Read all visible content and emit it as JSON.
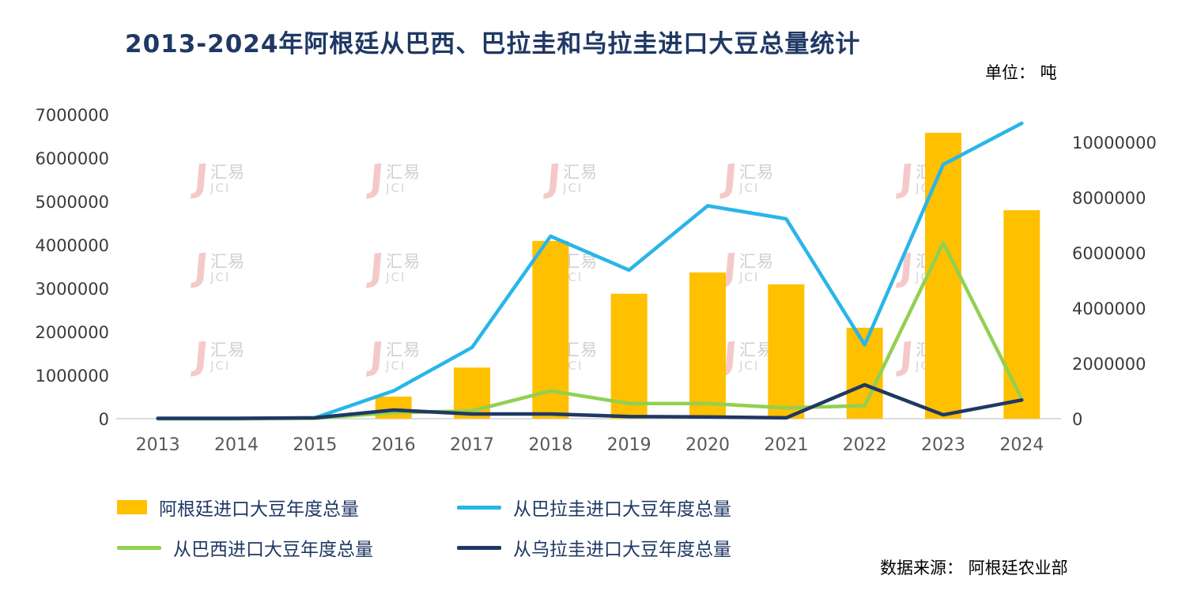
{
  "title": "2013-2024年阿根廷从巴西、巴拉圭和乌拉圭进口大豆总量统计",
  "unit_label": "单位： 吨",
  "source": "数据来源：  阿根廷农业部",
  "watermark": {
    "cn": "汇易",
    "en": "JCI"
  },
  "colors": {
    "title": "#1F3864",
    "bar": "#FFC000",
    "paraguay_line": "#2AB5E9",
    "brazil_line": "#92D050",
    "uruguay_line": "#1F3864",
    "baseline": "#D2D2D2",
    "left_axis_text": "#3A3A3A",
    "x_axis_text": "#595959"
  },
  "chart_data": {
    "type": "bar",
    "subtype": "bar+line combo, dual axis",
    "title": "2013-2024年阿根廷从巴西、巴拉圭和乌拉圭进口大豆总量统计",
    "xlabel": "",
    "ylabel": "吨",
    "grid": false,
    "legend_position": "bottom",
    "categories": [
      "2013",
      "2014",
      "2015",
      "2016",
      "2017",
      "2018",
      "2019",
      "2020",
      "2021",
      "2022",
      "2023",
      "2024"
    ],
    "left_axis": {
      "min": 0,
      "max": 7000000,
      "step": 1000000,
      "tick_labels": [
        "0",
        "1000000",
        "2000000",
        "3000000",
        "4000000",
        "5000000",
        "6000000",
        "7000000"
      ]
    },
    "right_axis": {
      "min": 0,
      "max": 10000000,
      "step": 2000000,
      "tick_labels": [
        "0",
        "2000000",
        "4000000",
        "6000000",
        "8000000",
        "10000000"
      ]
    },
    "series": [
      {
        "name": "阿根廷进口大豆年度总量",
        "type": "bar",
        "axis": "right",
        "color": "#FFC000",
        "values": [
          0,
          0,
          0,
          800000,
          1850000,
          6430000,
          4520000,
          5290000,
          4860000,
          3290000,
          10340000,
          7540000
        ]
      },
      {
        "name": "从巴拉圭进口大豆年度总量",
        "type": "line",
        "axis": "left",
        "color": "#2AB5E9",
        "values": [
          0,
          0,
          20000,
          640000,
          1640000,
          4200000,
          3420000,
          4900000,
          4600000,
          1700000,
          5850000,
          6800000
        ]
      },
      {
        "name": "从巴西进口大豆年度总量",
        "type": "line",
        "axis": "left",
        "color": "#92D050",
        "values": [
          0,
          0,
          10000,
          140000,
          180000,
          640000,
          350000,
          350000,
          250000,
          300000,
          4050000,
          460000
        ]
      },
      {
        "name": "从乌拉圭进口大豆年度总量",
        "type": "line",
        "axis": "left",
        "color": "#1F3864",
        "values": [
          10000,
          10000,
          20000,
          200000,
          110000,
          110000,
          50000,
          40000,
          20000,
          780000,
          90000,
          430000
        ]
      }
    ]
  }
}
